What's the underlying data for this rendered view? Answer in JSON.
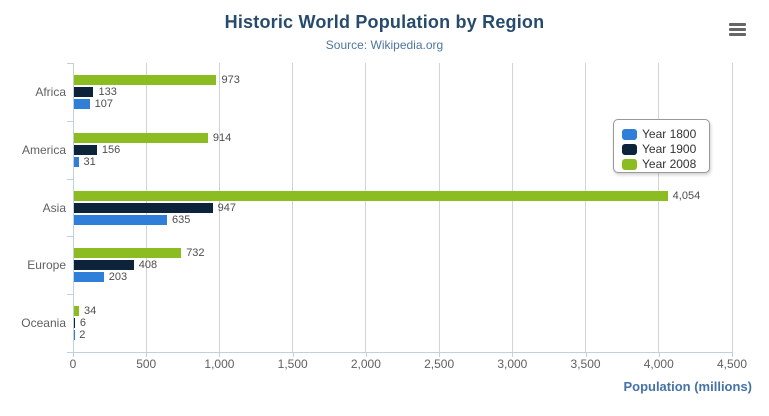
{
  "header": {
    "title": "Historic World Population by Region",
    "subtitle": "Source: Wikipedia.org"
  },
  "toolbar": {
    "menu_icon": "hamburger-icon"
  },
  "chart_data": {
    "type": "bar",
    "orientation": "horizontal",
    "title": "Historic World Population by Region",
    "subtitle": "Source: Wikipedia.org",
    "categories": [
      "Africa",
      "America",
      "Asia",
      "Europe",
      "Oceania"
    ],
    "series": [
      {
        "name": "Year 1800",
        "color": "#2f7ed8",
        "values": [
          107,
          31,
          635,
          203,
          2
        ],
        "labels": [
          "107",
          "31",
          "635",
          "203",
          "2"
        ]
      },
      {
        "name": "Year 1900",
        "color": "#0d233a",
        "values": [
          133,
          156,
          947,
          408,
          6
        ],
        "labels": [
          "133",
          "156",
          "947",
          "408",
          "6"
        ]
      },
      {
        "name": "Year 2008",
        "color": "#8bbc21",
        "values": [
          973,
          914,
          4054,
          732,
          34
        ],
        "labels": [
          "973",
          "914",
          "4,054",
          "732",
          "34"
        ]
      }
    ],
    "bar_visual_order_top_to_bottom": [
      "Year 2008",
      "Year 1900",
      "Year 1800"
    ],
    "xlabel": "Population (millions)",
    "xlim": [
      0,
      4500
    ],
    "xticks": [
      0,
      500,
      1000,
      1500,
      2000,
      2500,
      3000,
      3500,
      4000,
      4500
    ],
    "xtick_labels": [
      "0",
      "500",
      "1,000",
      "1,500",
      "2,000",
      "2,500",
      "3,000",
      "3,500",
      "4,000",
      "4,500"
    ],
    "grid": true,
    "legend_position": "right",
    "legend_border_color": "#999999"
  }
}
